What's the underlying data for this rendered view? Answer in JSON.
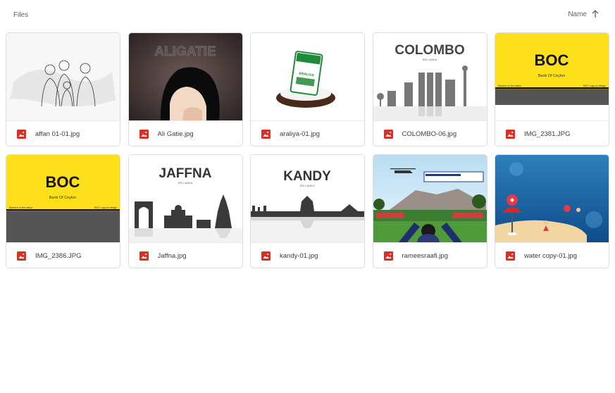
{
  "header": {
    "title": "Files",
    "sort_label": "Name",
    "sort_icon": "arrow-up-icon"
  },
  "files": [
    {
      "name": "affan 01-01.jpg",
      "icon": "image-file-icon"
    },
    {
      "name": "Ali Gatie.jpg",
      "icon": "image-file-icon",
      "thumb_text": "ALIGATIE"
    },
    {
      "name": "araliya-01.jpg",
      "icon": "image-file-icon",
      "thumb_text": "ARALIYA"
    },
    {
      "name": "COLOMBO-06.jpg",
      "icon": "image-file-icon",
      "thumb_text": "COLOMBO",
      "thumb_sub": "SRI LANKA"
    },
    {
      "name": "IMG_2381.JPG",
      "icon": "image-file-icon",
      "thumb_text": "BOC",
      "thumb_sub": "Bank Of Ceylon",
      "thumb_left": "Bankers to the nation",
      "thumb_right": "BOC Logo re-design"
    },
    {
      "name": "IMG_2386.JPG",
      "icon": "image-file-icon",
      "thumb_text": "BOC",
      "thumb_sub": "Bank Of Ceylon",
      "thumb_left": "Bankers to the nation",
      "thumb_right": "BOC Logo re-design"
    },
    {
      "name": "Jaffna.jpg",
      "icon": "image-file-icon",
      "thumb_text": "JAFFNA",
      "thumb_sub": "SRI LANKA"
    },
    {
      "name": "kandy-01.jpg",
      "icon": "image-file-icon",
      "thumb_text": "KANDY",
      "thumb_sub": "SRI LANKA"
    },
    {
      "name": "rameesraafi.jpg",
      "icon": "image-file-icon"
    },
    {
      "name": "water copy-01.jpg",
      "icon": "image-file-icon"
    }
  ],
  "colors": {
    "file_icon": "#d93025",
    "boc_yellow": "#fde01a",
    "card_border": "#dadce0",
    "muted_text": "#5f6368"
  }
}
